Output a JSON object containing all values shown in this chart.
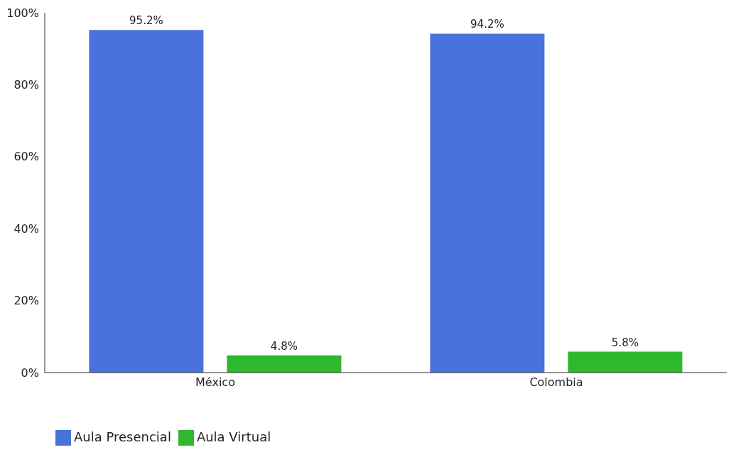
{
  "chart_data": {
    "type": "bar",
    "categories": [
      "México",
      "Colombia"
    ],
    "series": [
      {
        "name": "Aula Presencial",
        "color": "#4a72dc",
        "values": [
          95.2,
          94.2
        ],
        "value_labels": [
          "95.2%",
          "94.2%"
        ]
      },
      {
        "name": "Aula Virtual",
        "color": "#2db82d",
        "values": [
          4.8,
          5.8
        ],
        "value_labels": [
          "4.8%",
          "5.8%"
        ]
      }
    ],
    "ylim": [
      0,
      100
    ],
    "yticks": [
      {
        "value": 0,
        "label": "0%"
      },
      {
        "value": 20,
        "label": "20%"
      },
      {
        "value": 40,
        "label": "40%"
      },
      {
        "value": 60,
        "label": "60%"
      },
      {
        "value": 80,
        "label": "80%"
      },
      {
        "value": 100,
        "label": "100%"
      }
    ],
    "grid": false,
    "legend": "bottom left"
  }
}
